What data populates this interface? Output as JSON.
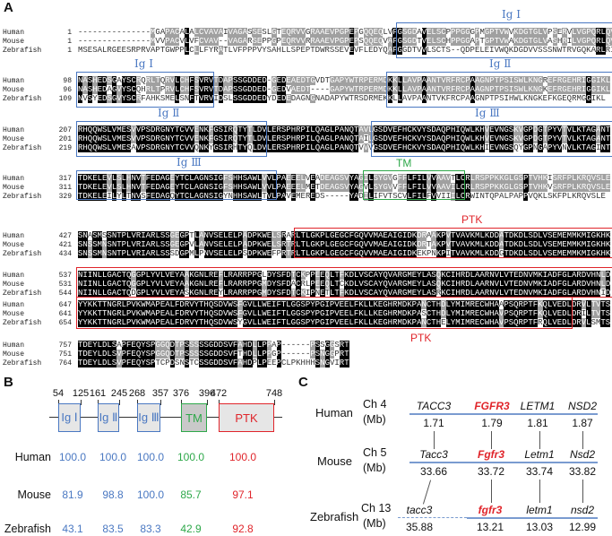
{
  "panels": {
    "a": "A",
    "b": "B",
    "c": "C"
  },
  "species": [
    "Human",
    "Mouse",
    "Zebrafish"
  ],
  "alignment": {
    "blocks": [
      {
        "starts": [
          "1",
          "1",
          "1"
        ],
        "seqs": [
          "---------------MGAPACALALCVAVAIVAGASSESLGTEQRVVGRAAEVPGPEPGQQEQLVFGSGDAVELSCPPPGGGPMGPTVWVKDGTGLVPSERVLVGPQRLQVL",
          "---------------MVVPACVLVFCVAV--VAGARSEPPGPEQRVVRRAAEVPGPEPSQQEQVAFGSGDTVELSCHPPGGAPTGPTVWAKDGTGLVASHRILVGPQRLQVL",
          "MSESALRGEESRPRVAPTGWPPLCLLFYRATLVFPPPVYSAHLLSPEPTDWRSSEVEVFLEDYQAFGGDTVVLSCTS--QDPELEIVWQKDGDVVSSSNWTRVGQKARLRI"
        ]
      },
      {
        "starts": [
          "98",
          "96",
          "109"
        ],
        "seqs": [
          "NASHEDSGAYSCRQRLTQRVLCHFSVRVTDAPSSGDDED-GEDEAEDTGVDTGAPYWTRPERMDKKLLAVPAANTVRFRCPAAGNPTPSISWLKNGREFRGEHRIGGIKL",
          "NASHEDAGVYSCQHRLTPRVLCHFSVRVTDAPSSGDDED-GEDVAEDT----GAPYWTRPERMDKKLLAVPAANTVRFRCPAAGNPTPSISWLKNGKEFRGEHRIGGIKL",
          "NVSYEDSGVYSCRFAHKSMELSNFTVRVIDSLSSGDDEDYDEDEDAGNGNADAPYWTRSDRMEKKLLAVPAANTVKFRCPAAGNPTPSIHWLKNGKEFKGEQRMGGIKL"
        ]
      },
      {
        "starts": [
          "207",
          "201",
          "219"
        ],
        "seqs": [
          "RHQQWSLVMESVVPSDRGNYTCVVENKFGSIRQTYTLDVLERSPHRPILQAGLPANQTAVLGSDVEFHCKVYSDAQPHIQWLKHVEVNGSKVGPDGTPYVTVLKTAGANT",
          "RHQQWSLVMESVVPSDRGNYTCVVENKFGSIRQTYTLDVLERSPHRPILQAGLPANQTAILGSDVEFHCKVYSDAQPHIQWLKHVEVNGSKVGPDGTPYVTVLKTAGANT",
          "RHQQWSLVMESAVPSDRGNYTCVVQNKYGSIRHTYQLDVLERSPHRPILQAGLPANQTVVVGSDVEFHCKVYSDAQPHIQWLKHIEVNGSQYGPNGAPYVNVLKTAGINT"
        ]
      },
      {
        "starts": [
          "317",
          "311",
          "329"
        ],
        "seqs": [
          "TDKELEVLSLHNVTFEDAGEYTCLAGNSIGFSHHSAWLVVLPAEEELVEADEAGSVYAGILSYGVGFFLFILVVAAVTLCRLRSPPKKGLGSPTVHKISRFPLKRQVSLE",
          "TDKELEVLSLHNVTFEDAGEYTCLAGNSIGFSHHSAWLVVLPAEEELMETDEAGSVYAGVLSYGVVFFLFILVVAAVILCRLRSPPKKGLGSPTVHKVSRFPLKRQVSLE",
          "TDKELEILYLTNVSFEDAGQYTCLAGNSIGYNHHSAWLTVLPAVEMEREDS-----YADILIFVTSCVLFILFVVIIILCRWINTQPALPAPPVQKLSKFPLKRQVSLE"
        ]
      },
      {
        "starts": [
          "427",
          "421",
          "434"
        ],
        "seqs": [
          "SNASMSSNTPLVRIARLSSGEGPTLANVSELELPADPKWELSRARLTLGKPLGEGCFGQVVMAEAIGIDKDRAAKPVTVAVKMLKDDATDKDLSDLVSEMEMMKMIGKHK",
          "SNSSMNSNTPLVRIARLSSGEGPVLANVSELELPADPKWELSRTRLTLGKPLGEGCFGQVVMAEAIGIDKDRTAKPVTVAVKMLKDDATDKDLSDLVSEMEMMKMIGKHK",
          "SNSSMNSNTPLVRIARLSSSDGPMLPNVSELELPSDPKWEFPRTRLTLGKPLGEGCFGQVVMAEAIGIDKEKPNKPITVAVKMLKDDGTDKDLSDLVSEMEMMKMIGKHK"
        ]
      },
      {
        "starts": [
          "537",
          "531",
          "544"
        ],
        "seqs": [
          "NIINLLGACTQGGPLYVLVEYAAKGNLREFLRARRPPGLDYSFDTCKPPEEQLTFKDLVSCAYQVARGMEYLASQKCIHRDLAARNVLVTEDNVMKIADFGLARDVHNLD",
          "NIINLLGACTQGGPLYVLVEYAAKGNLREFLRARRPPGMDYSFDACRLPEEQLTCKDLVSCAYQVARGMEYLASQKCIHRDLAARNVLVTEDNVMKIADFGLARDVHNLD",
          "NIINLLGACTQDGPLYVLVEYASKGNLREYLRARRPPGMDYSFDTCKIPNETLTFKDLVSCAYQVARGMEYLASRKCIHRDLAARNVLVTEDNVMKIADFGLARDVHNID"
        ]
      },
      {
        "starts": [
          "647",
          "641",
          "654"
        ],
        "seqs": [
          "YYKKTTNGRLPVKWMAPEALFDRVYTHQSDVWSFGVLLWEIFTLGGSPYPGIPVEELFKLLKEGHRMDKPANCTHDLYMIMRECWHAAPSQRPTFKQLVEDLDRVLTVTS",
          "YYKKTTNGRLPVKWMAPEALFDRVYTHQSDVWSFGVLLWEIFTLGGSPYPGIPVEELFKLLKEGHRMDKPASCTHDLYMIMRECWHAVPSQRPTFKQLVEDLDRILTVTS",
          "YYKKTTNGRLPVKWMAPEALFDRVYTHQSDVWSYGVLLWEIFTLGGSPYPGIPVEELFKLLKEGHRMDKPANCTHELYMIMRECWHAVPSQRPTFRQLVEDLDRVLSMTS"
        ]
      },
      {
        "starts": [
          "757",
          "751",
          "764"
        ],
        "seqs": [
          "TDEYLDLSAPFEQYSPGGQDTPSSSSSGDDSVFAHDLLPPAP------PSSGGSRT",
          "TDEYLDLSVPFEQYSPGGQDTPSSSSSGDDSVFTHDLLPPGP------PSNGGPRT",
          "TDEYLDLSVPFEQYSPTCPDSNSTCSSGDDSVFAHDPLPEEPCLPKHHHSNGVIRT"
        ]
      }
    ],
    "domain_labels": {
      "ig1": "Ig Ⅰ",
      "ig2": "Ig Ⅱ",
      "ig3": "Ig Ⅲ",
      "tm": "TM",
      "ptk": "PTK"
    }
  },
  "domains": {
    "positions": [
      "54",
      "125",
      "161",
      "245",
      "268",
      "357",
      "376",
      "396",
      "472",
      "748"
    ],
    "boxes": [
      "Ig Ⅰ",
      "Ig Ⅱ",
      "Ig Ⅲ",
      "TM",
      "PTK"
    ],
    "identity": [
      {
        "species": "Human",
        "values": [
          "100.0",
          "100.0",
          "100.0",
          "100.0",
          "100.0"
        ]
      },
      {
        "species": "Mouse",
        "values": [
          "81.9",
          "98.8",
          "100.0",
          "85.7",
          "97.1"
        ]
      },
      {
        "species": "Zebrafish",
        "values": [
          "43.1",
          "83.5",
          "83.3",
          "42.9",
          "92.8"
        ]
      }
    ]
  },
  "synteny": {
    "unit": "(Mb)",
    "rows": [
      {
        "species": "Human",
        "chrom": "Ch 4",
        "genes": [
          "TACC3",
          "FGFR3",
          "LETM1",
          "NSD2"
        ],
        "pos": [
          "1.71",
          "1.79",
          "1.81",
          "1.87"
        ]
      },
      {
        "species": "Mouse",
        "chrom": "Ch 5",
        "genes": [
          "Tacc3",
          "Fgfr3",
          "Letm1",
          "Nsd2"
        ],
        "pos": [
          "33.66",
          "33.72",
          "33.74",
          "33.82"
        ]
      },
      {
        "species": "Zebrafish",
        "chrom": "Ch 13",
        "genes": [
          "tacc3",
          "fgfr3",
          "letm1",
          "nsd2"
        ],
        "pos": [
          "35.88",
          "13.21",
          "13.03",
          "12.99"
        ]
      }
    ]
  },
  "colors": {
    "ig": "#4a78c2",
    "tm": "#2ea84a",
    "ptk": "#e0252b"
  }
}
